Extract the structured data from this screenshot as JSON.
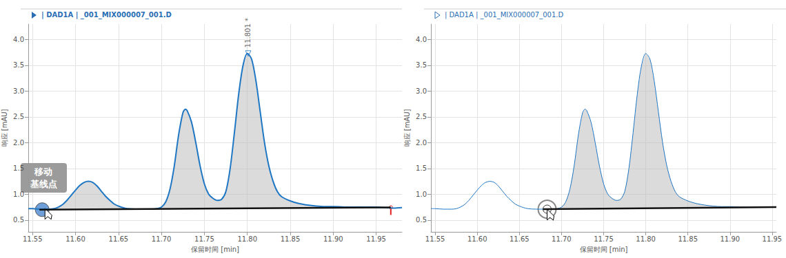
{
  "chart_data": [
    {
      "type": "line",
      "title": "| DAD1A | _001_MIX000007_001.D",
      "x_label": "保留时间 [min]",
      "y_label": "响应 [mAU]",
      "color": "#1f77c4",
      "x": [
        11.545,
        11.55,
        11.56,
        11.57,
        11.575,
        11.58,
        11.585,
        11.59,
        11.595,
        11.6,
        11.605,
        11.61,
        11.615,
        11.62,
        11.625,
        11.63,
        11.635,
        11.64,
        11.645,
        11.65,
        11.655,
        11.66,
        11.67,
        11.68,
        11.69,
        11.695,
        11.7,
        11.705,
        11.71,
        11.715,
        11.72,
        11.725,
        11.728,
        11.73,
        11.735,
        11.74,
        11.745,
        11.75,
        11.755,
        11.76,
        11.765,
        11.77,
        11.775,
        11.78,
        11.785,
        11.79,
        11.795,
        11.8,
        11.805,
        11.81,
        11.815,
        11.82,
        11.825,
        11.83,
        11.835,
        11.84,
        11.85,
        11.86,
        11.87,
        11.88,
        11.89,
        11.9,
        11.92,
        11.94,
        11.95,
        11.96,
        11.97,
        11.98
      ],
      "values": [
        0.72,
        0.72,
        0.71,
        0.71,
        0.72,
        0.75,
        0.8,
        0.88,
        0.98,
        1.08,
        1.17,
        1.23,
        1.25,
        1.23,
        1.16,
        1.06,
        0.96,
        0.88,
        0.81,
        0.77,
        0.74,
        0.72,
        0.71,
        0.71,
        0.71,
        0.72,
        0.75,
        0.85,
        1.1,
        1.55,
        2.15,
        2.58,
        2.65,
        2.62,
        2.4,
        2.0,
        1.55,
        1.2,
        1.0,
        0.92,
        0.88,
        0.9,
        1.05,
        1.5,
        2.2,
        2.95,
        3.5,
        3.73,
        3.62,
        3.2,
        2.6,
        2.0,
        1.55,
        1.25,
        1.05,
        0.95,
        0.87,
        0.82,
        0.79,
        0.77,
        0.76,
        0.76,
        0.75,
        0.75,
        0.75,
        0.74,
        0.73,
        0.74
      ],
      "baseline": {
        "x": [
          11.558,
          11.967
        ],
        "values": [
          0.7,
          0.745
        ],
        "color": "#111111"
      },
      "xlim": [
        11.545,
        11.98
      ],
      "ylim": [
        0.27,
        4.3
      ],
      "xticks": [
        11.55,
        {
          "value": 11.6,
          "label": "11.60"
        },
        11.65,
        {
          "value": 11.7,
          "label": "11.70"
        },
        11.75,
        {
          "value": 11.8,
          "label": "11.80"
        },
        11.85,
        {
          "value": 11.9,
          "label": "11.90"
        },
        11.95
      ],
      "yticks": [
        0.5,
        {
          "value": 1,
          "label": "1.0"
        },
        1.5,
        {
          "value": 2,
          "label": "2.0"
        },
        2.5,
        {
          "value": 3,
          "label": "3.0"
        },
        3.5,
        {
          "value": 4,
          "label": "4.0"
        }
      ],
      "grid": true,
      "annotations": [
        {
          "x": 11.801,
          "y": 3.73,
          "text": "11.801 *"
        }
      ],
      "callout": "移动\n基线点"
    },
    {
      "type": "line",
      "title": "| DAD1A | _001_MIX000007_001.D",
      "x_label": "保留时间 [min]",
      "y_label": "响应 [mAU]",
      "color": "#1f77c4",
      "x": [
        11.545,
        11.55,
        11.56,
        11.57,
        11.575,
        11.58,
        11.585,
        11.59,
        11.595,
        11.6,
        11.605,
        11.61,
        11.615,
        11.62,
        11.625,
        11.63,
        11.635,
        11.64,
        11.645,
        11.65,
        11.655,
        11.66,
        11.67,
        11.68,
        11.69,
        11.695,
        11.7,
        11.705,
        11.71,
        11.715,
        11.72,
        11.725,
        11.728,
        11.73,
        11.735,
        11.74,
        11.745,
        11.75,
        11.755,
        11.76,
        11.765,
        11.77,
        11.775,
        11.78,
        11.785,
        11.79,
        11.795,
        11.8,
        11.805,
        11.81,
        11.815,
        11.82,
        11.825,
        11.83,
        11.835,
        11.84,
        11.85,
        11.86,
        11.87,
        11.88,
        11.89,
        11.9,
        11.92,
        11.94,
        11.95
      ],
      "values": [
        0.72,
        0.72,
        0.71,
        0.71,
        0.72,
        0.75,
        0.8,
        0.88,
        0.98,
        1.08,
        1.17,
        1.23,
        1.25,
        1.23,
        1.16,
        1.06,
        0.96,
        0.88,
        0.81,
        0.77,
        0.74,
        0.72,
        0.71,
        0.71,
        0.71,
        0.72,
        0.75,
        0.85,
        1.1,
        1.55,
        2.15,
        2.58,
        2.65,
        2.62,
        2.4,
        2.0,
        1.55,
        1.2,
        1.0,
        0.92,
        0.88,
        0.9,
        1.05,
        1.5,
        2.2,
        2.95,
        3.5,
        3.73,
        3.62,
        3.2,
        2.6,
        2.0,
        1.55,
        1.25,
        1.05,
        0.95,
        0.87,
        0.82,
        0.79,
        0.77,
        0.76,
        0.76,
        0.75,
        0.75,
        0.75
      ],
      "baseline": {
        "x": [
          11.678,
          11.955
        ],
        "values": [
          0.71,
          0.75
        ],
        "color": "#111111"
      },
      "xlim": [
        11.545,
        11.955
      ],
      "ylim": [
        0.27,
        4.3
      ],
      "xticks": [
        11.55,
        {
          "value": 11.6,
          "label": "11.60"
        },
        11.65,
        {
          "value": 11.7,
          "label": "11.70"
        },
        11.75,
        {
          "value": 11.8,
          "label": "11.80"
        },
        11.85,
        {
          "value": 11.9,
          "label": "11.90"
        },
        11.95
      ],
      "yticks": [
        0.5,
        {
          "value": 1,
          "label": "1.0"
        },
        1.5,
        {
          "value": 2,
          "label": "2.0"
        },
        2.5,
        {
          "value": 3,
          "label": "3.0"
        },
        3.5,
        {
          "value": 4,
          "label": "4.0"
        }
      ],
      "grid": true
    }
  ]
}
